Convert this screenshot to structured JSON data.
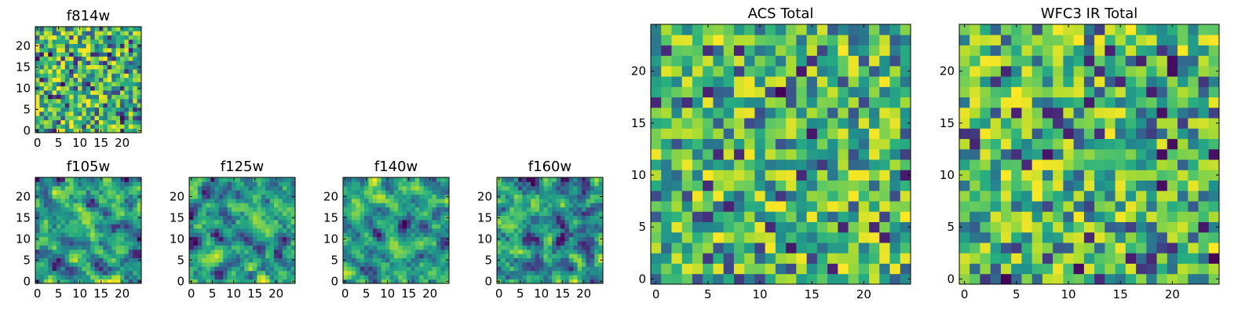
{
  "chart_data": [
    {
      "type": "heatmap",
      "title": "f814w",
      "shape": [
        25,
        25
      ],
      "seed": 814,
      "pixel_scale": "single",
      "colormap": "viridis",
      "value_range": [
        0,
        1
      ],
      "xlim": [
        -0.5,
        24.5
      ],
      "ylim": [
        -0.5,
        24.5
      ],
      "xticks": [
        "0",
        "5",
        "10",
        "15",
        "20"
      ],
      "yticks": [
        "0",
        "5",
        "10",
        "15",
        "20"
      ]
    },
    {
      "type": "heatmap",
      "title": "f105w",
      "shape": [
        25,
        25
      ],
      "seed": 105,
      "pixel_scale": "single",
      "colormap": "viridis",
      "value_range": [
        0,
        1
      ],
      "xlim": [
        -0.5,
        24.5
      ],
      "ylim": [
        -0.5,
        24.5
      ],
      "xticks": [
        "0",
        "5",
        "10",
        "15",
        "20"
      ],
      "yticks": [
        "0",
        "5",
        "10",
        "15",
        "20"
      ]
    },
    {
      "type": "heatmap",
      "title": "f125w",
      "shape": [
        25,
        25
      ],
      "seed": 125,
      "pixel_scale": "single",
      "colormap": "viridis",
      "value_range": [
        0,
        1
      ],
      "xlim": [
        -0.5,
        24.5
      ],
      "ylim": [
        -0.5,
        24.5
      ],
      "xticks": [
        "0",
        "5",
        "10",
        "15",
        "20"
      ],
      "yticks": [
        "0",
        "5",
        "10",
        "15",
        "20"
      ]
    },
    {
      "type": "heatmap",
      "title": "f140w",
      "shape": [
        25,
        25
      ],
      "seed": 140,
      "pixel_scale": "single",
      "colormap": "viridis",
      "value_range": [
        0,
        1
      ],
      "xlim": [
        -0.5,
        24.5
      ],
      "ylim": [
        -0.5,
        24.5
      ],
      "xticks": [
        "0",
        "5",
        "10",
        "15",
        "20"
      ],
      "yticks": [
        "0",
        "5",
        "10",
        "15",
        "20"
      ]
    },
    {
      "type": "heatmap",
      "title": "f160w",
      "shape": [
        25,
        25
      ],
      "seed": 160,
      "pixel_scale": "single",
      "colormap": "viridis",
      "value_range": [
        0,
        1
      ],
      "xlim": [
        -0.5,
        24.5
      ],
      "ylim": [
        -0.5,
        24.5
      ],
      "xticks": [
        "0",
        "5",
        "10",
        "15",
        "20"
      ],
      "yticks": [
        "0",
        "5",
        "10",
        "15",
        "20"
      ]
    },
    {
      "type": "heatmap",
      "title": "ACS Total",
      "shape": [
        25,
        25
      ],
      "seed": 2001,
      "pixel_scale": "single",
      "colormap": "viridis",
      "value_range": [
        0,
        1
      ],
      "xlim": [
        -0.5,
        24.5
      ],
      "ylim": [
        -0.5,
        24.5
      ],
      "xticks": [
        "0",
        "5",
        "10",
        "15",
        "20"
      ],
      "yticks": [
        "0",
        "5",
        "10",
        "15",
        "20"
      ]
    },
    {
      "type": "heatmap",
      "title": "WFC3 IR Total",
      "shape": [
        25,
        25
      ],
      "seed": 3001,
      "pixel_scale": "single",
      "colormap": "viridis",
      "value_range": [
        0,
        1
      ],
      "xlim": [
        -0.5,
        24.5
      ],
      "ylim": [
        -0.5,
        24.5
      ],
      "xticks": [
        "0",
        "5",
        "10",
        "15",
        "20"
      ],
      "yticks": [
        "0",
        "5",
        "10",
        "15",
        "20"
      ]
    }
  ],
  "colors": {
    "viridis_low": "#440154",
    "viridis_mid": "#21918c",
    "viridis_high": "#fde725",
    "axis": "#000000",
    "background": "#ffffff"
  }
}
